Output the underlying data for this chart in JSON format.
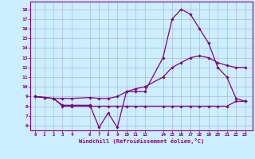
{
  "xlabel": "Windchill (Refroidissement éolien,°C)",
  "bg_color": "#cceeff",
  "line_color": "#800080",
  "grid_color": "#aaaacc",
  "xticks": [
    0,
    1,
    2,
    3,
    4,
    6,
    7,
    8,
    9,
    10,
    11,
    12,
    14,
    15,
    16,
    17,
    18,
    19,
    20,
    21,
    22,
    23
  ],
  "yticks": [
    6,
    7,
    8,
    9,
    10,
    11,
    12,
    13,
    14,
    15,
    16,
    17,
    18
  ],
  "ylim": [
    5.5,
    18.8
  ],
  "xlim": [
    -0.5,
    23.8
  ],
  "series1_x": [
    0,
    1,
    2,
    3,
    4,
    6,
    7,
    8,
    9,
    10,
    11,
    12,
    14,
    15,
    16,
    17,
    18,
    19,
    20,
    21,
    22,
    23
  ],
  "series1_y": [
    9.0,
    8.9,
    8.8,
    8.1,
    8.1,
    8.1,
    5.8,
    7.3,
    5.8,
    9.5,
    9.5,
    9.5,
    13.0,
    17.0,
    18.0,
    17.5,
    16.0,
    14.5,
    12.0,
    11.0,
    8.8,
    8.5
  ],
  "series2_x": [
    0,
    1,
    2,
    3,
    4,
    6,
    7,
    8,
    9,
    10,
    11,
    12,
    14,
    15,
    16,
    17,
    18,
    19,
    20,
    21,
    22,
    23
  ],
  "series2_y": [
    9.0,
    8.9,
    8.8,
    8.0,
    8.0,
    8.0,
    8.0,
    8.0,
    8.0,
    8.0,
    8.0,
    8.0,
    8.0,
    8.0,
    8.0,
    8.0,
    8.0,
    8.0,
    8.0,
    8.0,
    8.5,
    8.5
  ],
  "series3_x": [
    0,
    1,
    2,
    3,
    4,
    6,
    7,
    8,
    9,
    10,
    11,
    12,
    14,
    15,
    16,
    17,
    18,
    19,
    20,
    21,
    22,
    23
  ],
  "series3_y": [
    9.0,
    8.9,
    8.8,
    8.8,
    8.8,
    8.9,
    8.8,
    8.8,
    9.0,
    9.5,
    9.8,
    10.0,
    11.0,
    12.0,
    12.5,
    13.0,
    13.2,
    13.0,
    12.5,
    12.2,
    12.0,
    12.0
  ]
}
